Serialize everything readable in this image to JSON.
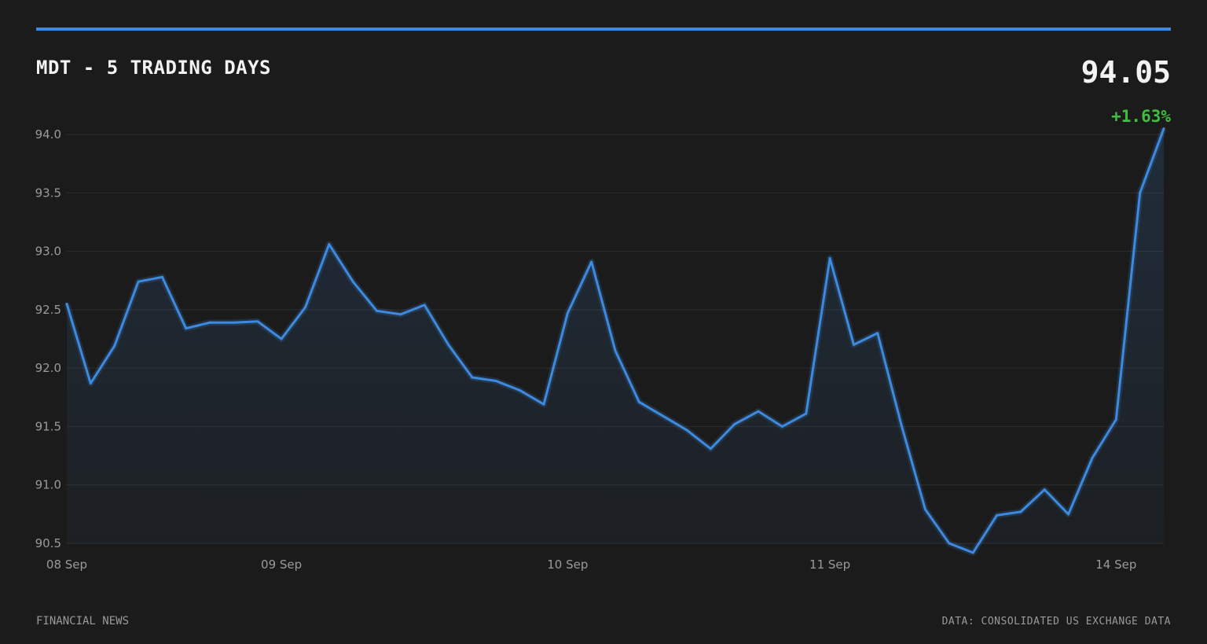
{
  "header": {
    "title": "MDT - 5 TRADING DAYS",
    "last_price": "94.05",
    "change": "+1.63%"
  },
  "footer": {
    "source_left": "FINANCIAL NEWS",
    "source_right": "DATA: CONSOLIDATED US EXCHANGE DATA"
  },
  "colors": {
    "accent": "#3d8ae0",
    "positive": "#3fbf3f",
    "grid": "#2e2e2e",
    "background": "#1b1b1b"
  },
  "chart_data": {
    "type": "area",
    "title": "MDT - 5 TRADING DAYS",
    "xlabel": "",
    "ylabel": "",
    "ylim": [
      90.5,
      94.0
    ],
    "yticks": [
      90.5,
      91.0,
      91.5,
      92.0,
      92.5,
      93.0,
      93.5,
      94.0
    ],
    "ytick_labels": [
      "90.5",
      "91.0",
      "91.5",
      "92.0",
      "92.5",
      "93.0",
      "93.5",
      "94.0"
    ],
    "grid": true,
    "xtick_labels": [
      {
        "index": 0,
        "label": "08 Sep"
      },
      {
        "index": 9,
        "label": "09 Sep"
      },
      {
        "index": 21,
        "label": "10 Sep"
      },
      {
        "index": 32,
        "label": "11 Sep"
      },
      {
        "index": 44,
        "label": "14 Sep"
      }
    ],
    "values": [
      92.55,
      91.87,
      92.19,
      92.74,
      92.78,
      92.34,
      92.39,
      92.39,
      92.4,
      92.25,
      92.52,
      93.06,
      92.74,
      92.49,
      92.46,
      92.54,
      92.2,
      91.92,
      91.89,
      91.81,
      91.69,
      92.47,
      92.91,
      92.15,
      91.71,
      91.59,
      91.47,
      91.31,
      91.52,
      91.63,
      91.5,
      91.61,
      92.94,
      92.2,
      92.3,
      91.51,
      90.79,
      90.5,
      90.42,
      90.74,
      90.77,
      90.96,
      90.75,
      91.23,
      91.56,
      93.5,
      94.05
    ]
  }
}
